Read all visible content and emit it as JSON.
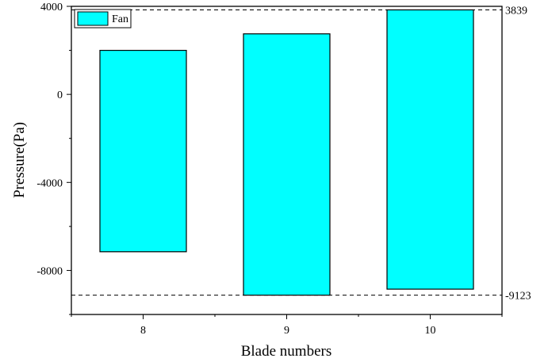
{
  "chart_data": {
    "type": "bar",
    "title": "",
    "xlabel": "Blade numbers",
    "ylabel": "Pressure(Pa)",
    "categories": [
      "8",
      "9",
      "10"
    ],
    "series": [
      {
        "name": "Fan",
        "color": "#00FFFF",
        "ranges": [
          {
            "category": "8",
            "low": -7150,
            "high": 2000
          },
          {
            "category": "9",
            "low": -9123,
            "high": 2750
          },
          {
            "category": "10",
            "low": -8850,
            "high": 3839
          }
        ]
      }
    ],
    "yticks": [
      "4000",
      "0",
      "-4000",
      "-8000"
    ],
    "ylim": [
      -10000,
      4000
    ],
    "reference_lines": [
      {
        "value": 3839,
        "label": "3839"
      },
      {
        "value": -9123,
        "label": "-9123"
      }
    ],
    "legend": {
      "position": "top-left",
      "label": "Fan"
    },
    "grid": false
  }
}
